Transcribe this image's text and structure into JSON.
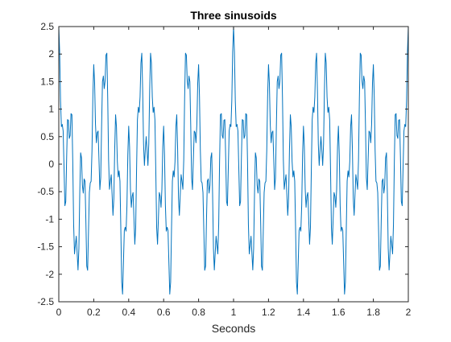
{
  "chart_data": {
    "type": "line",
    "title": "Three sinusoids",
    "xlabel": "Seconds",
    "ylabel": "",
    "xlim": [
      0,
      2
    ],
    "ylim": [
      -2.5,
      2.5
    ],
    "x_ticks": [
      0,
      0.2,
      0.4,
      0.6,
      0.8,
      1,
      1.2,
      1.4,
      1.6,
      1.8,
      2
    ],
    "x_tick_labels": [
      "0",
      "0.2",
      "0.4",
      "0.6",
      "0.8",
      "1",
      "1.2",
      "1.4",
      "1.6",
      "1.8",
      "2"
    ],
    "y_ticks": [
      -2.5,
      -2,
      -1.5,
      -1,
      -0.5,
      0,
      0.5,
      1,
      1.5,
      2,
      2.5
    ],
    "y_tick_labels": [
      "-2.5",
      "-2",
      "-1.5",
      "-1",
      "-0.5",
      "0",
      "0.5",
      "1",
      "1.5",
      "2",
      "2.5"
    ],
    "grid": false,
    "series": [
      {
        "color": "#0072BD",
        "x_start": 0,
        "x_end": 2,
        "x_step": 0.005,
        "components": [
          {
            "frequency_hz": 4,
            "amplitude": 1
          },
          {
            "frequency_hz": 15,
            "amplitude": 1
          },
          {
            "frequency_hz": 40,
            "amplitude": 0.5
          }
        ],
        "phase": "cosine"
      }
    ]
  },
  "colors": {
    "axes": "#262626",
    "background": "#ffffff"
  }
}
